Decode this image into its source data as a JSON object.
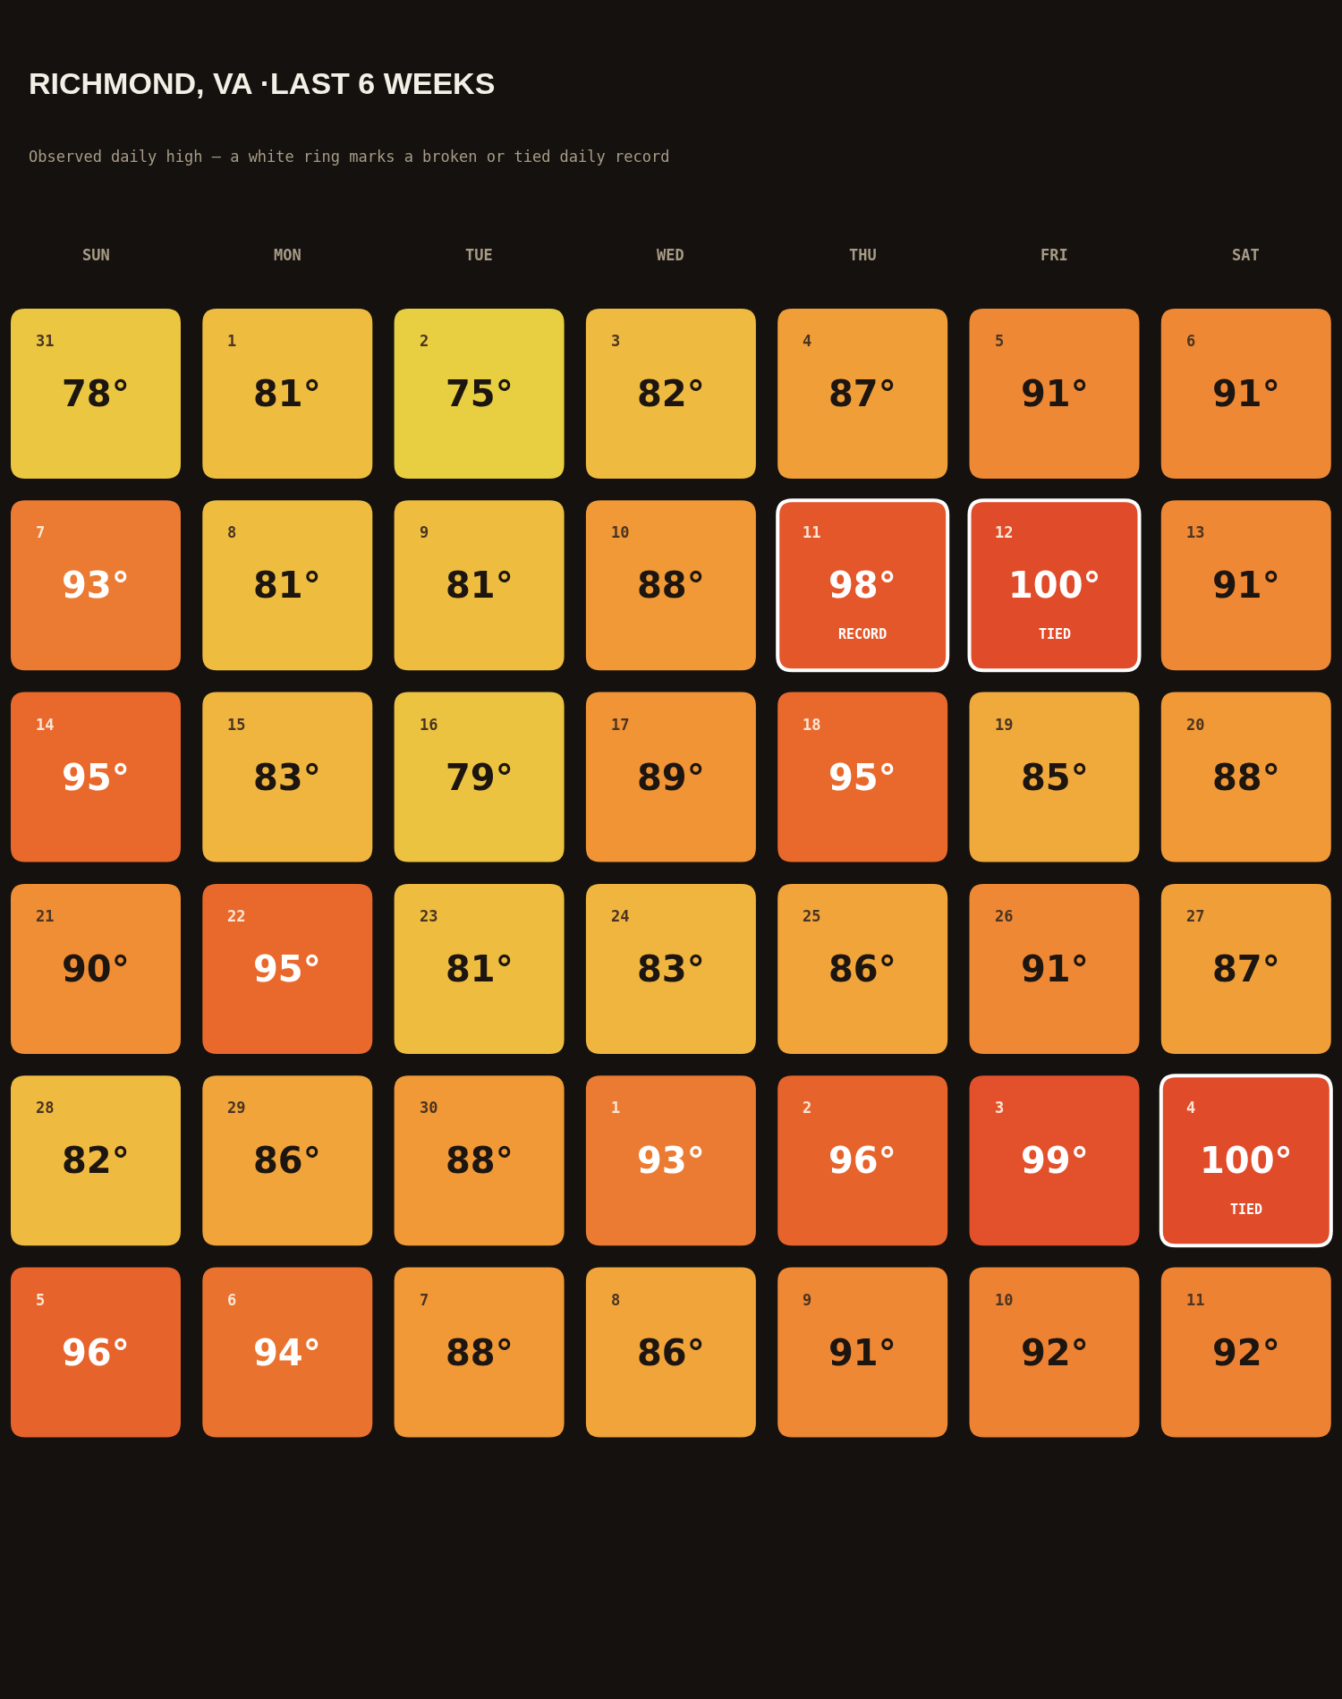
{
  "chart_data": {
    "type": "heatmap",
    "title": "RICHMOND, VA ·LAST 6 WEEKS",
    "subtitle": "Observed daily high — a white ring marks a broken or tied daily record",
    "categories": [
      "SUN",
      "MON",
      "TUE",
      "WED",
      "THU",
      "FRI",
      "SAT"
    ],
    "y_categories": [
      null,
      null,
      null,
      null,
      null,
      null
    ],
    "cells": [
      [
        78,
        81,
        75,
        82,
        87,
        91,
        91
      ],
      [
        93,
        81,
        81,
        88,
        98,
        100,
        91
      ],
      [
        95,
        83,
        79,
        89,
        95,
        85,
        88
      ],
      [
        90,
        95,
        81,
        83,
        86,
        91,
        87
      ],
      [
        82,
        86,
        88,
        93,
        96,
        99,
        100
      ],
      [
        96,
        94,
        88,
        86,
        91,
        92,
        92
      ]
    ],
    "cell_labels": [
      [
        "78°",
        "81°",
        "75°",
        "82°",
        "87°",
        "91°",
        "91°"
      ],
      [
        "93°",
        "81°",
        "81°",
        "88°",
        "98°\nRECORD",
        "100°\nTIED",
        "91°"
      ],
      [
        "95°",
        "83°",
        "79°",
        "89°",
        "95°",
        "85°",
        "88°"
      ],
      [
        "90°",
        "95°",
        "81°",
        "83°",
        "86°",
        "91°",
        "87°"
      ],
      [
        "82°",
        "86°",
        "88°",
        "93°",
        "96°",
        "99°",
        "100°\nTIED"
      ],
      [
        "96°",
        "94°",
        "88°",
        "86°",
        "91°",
        "92°",
        "92°"
      ]
    ],
    "annotations": [
      "31",
      "1",
      "2",
      "3",
      "4",
      "5",
      "6",
      "7",
      "8",
      "9",
      "10",
      "11",
      "12",
      "13",
      "14",
      "15",
      "16",
      "17",
      "18",
      "19",
      "20",
      "21",
      "22",
      "23",
      "24",
      "25",
      "26",
      "27",
      "28",
      "29",
      "30",
      "1",
      "2",
      "3",
      "4",
      "5",
      "6",
      "7",
      "8",
      "9",
      "10",
      "11"
    ]
  }
}
